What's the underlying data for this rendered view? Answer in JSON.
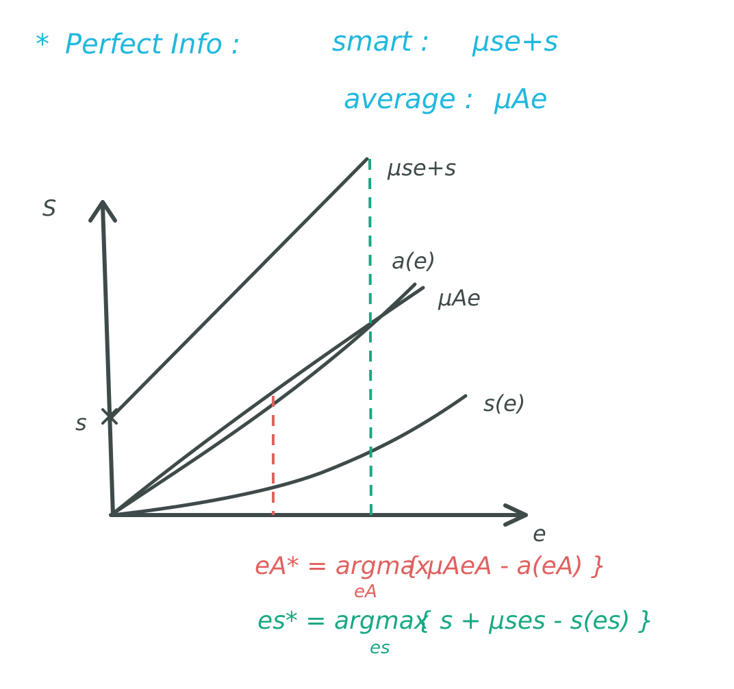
{
  "header": {
    "star": "*",
    "title": "Perfect Info :",
    "smart_label": "smart :",
    "smart_value": "μse+s",
    "average_label": "average :",
    "average_value": "μAe"
  },
  "axes": {
    "y_label": "S",
    "x_label": "e",
    "intercept_label": "s"
  },
  "curves": {
    "smart_line": "μse+s",
    "a_curve": "a(e)",
    "average_line": "μAe",
    "s_curve": "s(e)"
  },
  "equations": {
    "eA_lhs": "eA* = argmax",
    "eA_sub": "eA",
    "eA_rhs": "{ μAeA - a(eA) }",
    "eS_lhs": "es* = argmax",
    "eS_sub": "es",
    "eS_rhs": "{ s + μses - s(es) }"
  },
  "colors": {
    "cyan": "#1fb8de",
    "gray": "#3f4a4a",
    "red": "#e0615f",
    "green": "#18a883"
  }
}
